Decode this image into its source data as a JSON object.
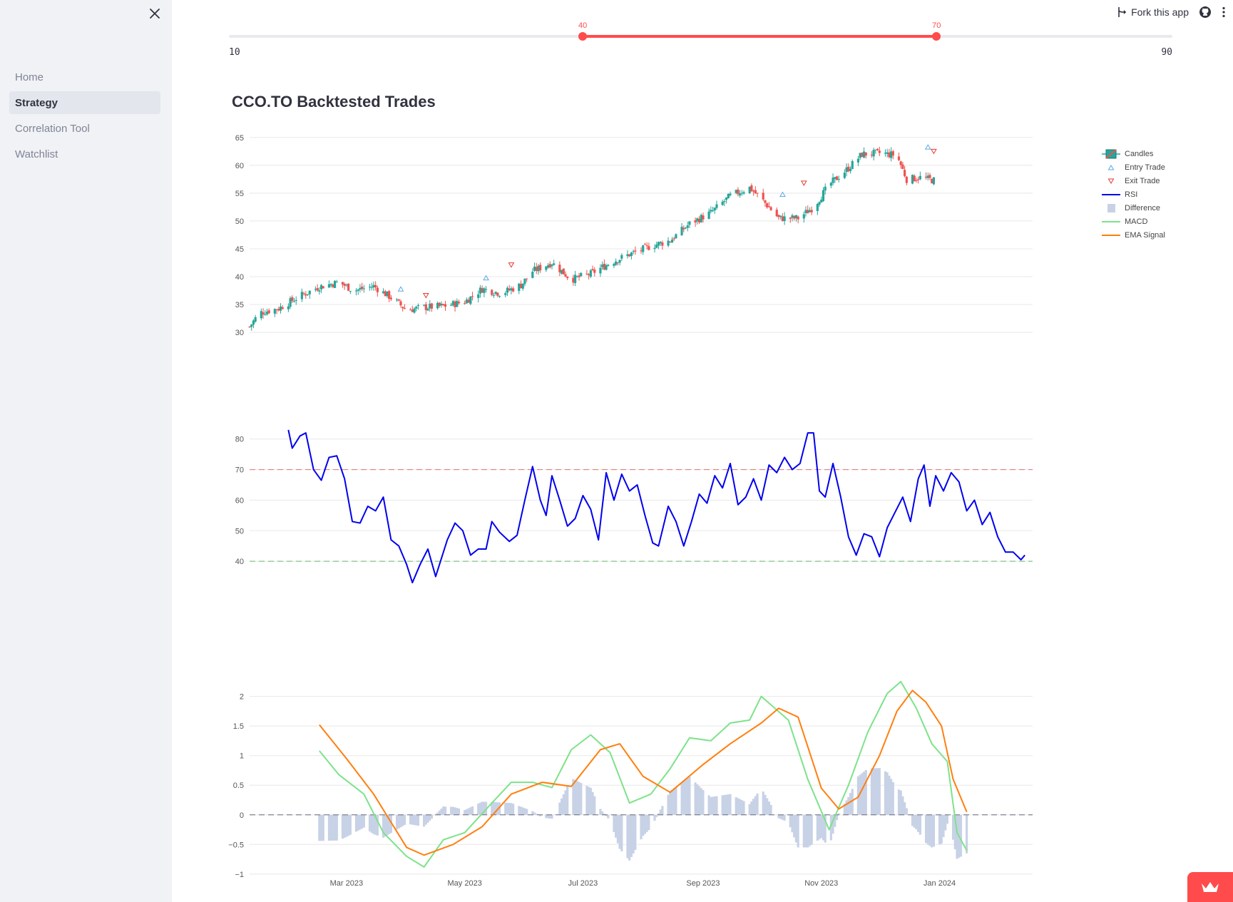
{
  "sidebar": {
    "items": [
      {
        "label": "Home",
        "active": false
      },
      {
        "label": "Strategy",
        "active": true
      },
      {
        "label": "Correlation Tool",
        "active": false
      },
      {
        "label": "Watchlist",
        "active": false
      }
    ]
  },
  "header": {
    "fork_label": "Fork this app",
    "icons": [
      "fork-icon",
      "github-icon",
      "more-vertical-icon"
    ]
  },
  "slider": {
    "min": "10",
    "max": "90",
    "low": 40,
    "high": 70,
    "low_label": "40",
    "high_label": "70",
    "accent": "#ff4b4b"
  },
  "page": {
    "title": "CCO.TO Backtested Trades"
  },
  "legend": [
    {
      "name": "Candles"
    },
    {
      "name": "Entry Trade"
    },
    {
      "name": "Exit Trade"
    },
    {
      "name": "RSI"
    },
    {
      "name": "Difference"
    },
    {
      "name": "MACD"
    },
    {
      "name": "EMA Signal"
    }
  ],
  "chart_data": [
    {
      "type": "candlestick",
      "name": "Candles",
      "ylim": [
        29.5,
        66
      ],
      "yticks": [
        "30",
        "35",
        "40",
        "45",
        "50",
        "55",
        "60",
        "65"
      ],
      "up_color": "#26a69a",
      "down_color": "#ef5350",
      "close_path": [
        [
          "2023-01-10",
          31
        ],
        [
          "2023-01-15",
          33.5
        ],
        [
          "2023-01-25",
          34.3
        ],
        [
          "2023-02-05",
          36.5
        ],
        [
          "2023-02-15",
          38.2
        ],
        [
          "2023-02-25",
          39
        ],
        [
          "2023-03-05",
          37.5
        ],
        [
          "2023-03-15",
          38.3
        ],
        [
          "2023-03-25",
          36
        ],
        [
          "2023-04-01",
          34
        ],
        [
          "2023-04-10",
          34.5
        ],
        [
          "2023-04-20",
          34.7
        ],
        [
          "2023-05-01",
          35.5
        ],
        [
          "2023-05-10",
          37.8
        ],
        [
          "2023-05-20",
          37
        ],
        [
          "2023-05-30",
          38.5
        ],
        [
          "2023-06-05",
          41
        ],
        [
          "2023-06-15",
          42.5
        ],
        [
          "2023-06-25",
          39.5
        ],
        [
          "2023-07-05",
          40.5
        ],
        [
          "2023-07-15",
          42.5
        ],
        [
          "2023-07-25",
          44
        ],
        [
          "2023-08-05",
          45.5
        ],
        [
          "2023-08-15",
          46.5
        ],
        [
          "2023-08-25",
          49.5
        ],
        [
          "2023-09-05",
          51.5
        ],
        [
          "2023-09-15",
          54.5
        ],
        [
          "2023-09-25",
          56
        ],
        [
          "2023-10-01",
          54
        ],
        [
          "2023-10-10",
          50.5
        ],
        [
          "2023-10-20",
          50.5
        ],
        [
          "2023-10-28",
          52.5
        ],
        [
          "2023-11-05",
          56.5
        ],
        [
          "2023-11-15",
          59.5
        ],
        [
          "2023-11-22",
          62
        ],
        [
          "2023-12-01",
          62.2
        ],
        [
          "2023-12-10",
          61.8
        ],
        [
          "2023-12-15",
          57.5
        ],
        [
          "2023-12-22",
          57.8
        ],
        [
          "2023-12-29",
          57.3
        ]
      ],
      "entries": [
        [
          "2023-03-29",
          37.8
        ],
        [
          "2023-05-12",
          39.8
        ],
        [
          "2023-10-12",
          54.8
        ],
        [
          "2023-12-26",
          63.3
        ]
      ],
      "exits": [
        [
          "2023-04-11",
          36.6
        ],
        [
          "2023-05-25",
          42.1
        ],
        [
          "2023-10-23",
          56.8
        ],
        [
          "2023-12-29",
          62.5
        ]
      ]
    },
    {
      "type": "line",
      "name": "RSI",
      "color": "#0000ee",
      "ylim": [
        30,
        86
      ],
      "yticks": [
        "40",
        "50",
        "60",
        "70",
        "80"
      ],
      "overbought": 70,
      "oversold": 40,
      "values": [
        [
          "2023-01-30",
          83
        ],
        [
          "2023-02-01",
          77
        ],
        [
          "2023-02-05",
          81
        ],
        [
          "2023-02-08",
          82
        ],
        [
          "2023-02-12",
          70
        ],
        [
          "2023-02-16",
          66.5
        ],
        [
          "2023-02-20",
          74
        ],
        [
          "2023-02-24",
          74.5
        ],
        [
          "2023-02-28",
          67
        ],
        [
          "2023-03-04",
          53
        ],
        [
          "2023-03-08",
          52.5
        ],
        [
          "2023-03-12",
          58
        ],
        [
          "2023-03-16",
          56.5
        ],
        [
          "2023-03-20",
          61
        ],
        [
          "2023-03-24",
          47
        ],
        [
          "2023-03-28",
          45
        ],
        [
          "2023-04-01",
          39
        ],
        [
          "2023-04-04",
          33
        ],
        [
          "2023-04-08",
          39
        ],
        [
          "2023-04-12",
          44
        ],
        [
          "2023-04-16",
          35
        ],
        [
          "2023-04-22",
          47
        ],
        [
          "2023-04-26",
          52.5
        ],
        [
          "2023-04-30",
          50
        ],
        [
          "2023-05-04",
          42
        ],
        [
          "2023-05-08",
          44
        ],
        [
          "2023-05-12",
          44
        ],
        [
          "2023-05-15",
          53
        ],
        [
          "2023-05-19",
          49.5
        ],
        [
          "2023-05-24",
          46.5
        ],
        [
          "2023-05-28",
          48.5
        ],
        [
          "2023-06-01",
          60
        ],
        [
          "2023-06-05",
          71
        ],
        [
          "2023-06-09",
          60
        ],
        [
          "2023-06-12",
          55
        ],
        [
          "2023-06-15",
          68
        ],
        [
          "2023-06-19",
          60
        ],
        [
          "2023-06-23",
          51.5
        ],
        [
          "2023-06-27",
          54
        ],
        [
          "2023-07-01",
          61.5
        ],
        [
          "2023-07-05",
          57
        ],
        [
          "2023-07-09",
          47
        ],
        [
          "2023-07-13",
          69
        ],
        [
          "2023-07-17",
          60
        ],
        [
          "2023-07-21",
          68.5
        ],
        [
          "2023-07-25",
          63
        ],
        [
          "2023-07-29",
          65
        ],
        [
          "2023-08-02",
          55
        ],
        [
          "2023-08-06",
          46
        ],
        [
          "2023-08-09",
          45
        ],
        [
          "2023-08-14",
          58
        ],
        [
          "2023-08-18",
          53
        ],
        [
          "2023-08-22",
          45
        ],
        [
          "2023-08-26",
          53
        ],
        [
          "2023-08-30",
          62
        ],
        [
          "2023-09-03",
          59
        ],
        [
          "2023-09-07",
          68
        ],
        [
          "2023-09-11",
          64
        ],
        [
          "2023-09-15",
          72
        ],
        [
          "2023-09-19",
          58.5
        ],
        [
          "2023-09-23",
          61
        ],
        [
          "2023-09-27",
          67
        ],
        [
          "2023-10-01",
          60
        ],
        [
          "2023-10-05",
          71.5
        ],
        [
          "2023-10-09",
          69
        ],
        [
          "2023-10-13",
          74
        ],
        [
          "2023-10-17",
          70
        ],
        [
          "2023-10-21",
          72
        ],
        [
          "2023-10-25",
          82
        ],
        [
          "2023-10-28",
          82
        ],
        [
          "2023-10-31",
          63
        ],
        [
          "2023-11-03",
          61
        ],
        [
          "2023-11-07",
          72
        ],
        [
          "2023-11-11",
          61
        ],
        [
          "2023-11-15",
          48
        ],
        [
          "2023-11-19",
          42
        ],
        [
          "2023-11-23",
          49
        ],
        [
          "2023-11-27",
          48
        ],
        [
          "2023-12-01",
          41.5
        ],
        [
          "2023-12-05",
          51
        ],
        [
          "2023-12-09",
          56
        ],
        [
          "2023-12-13",
          61
        ],
        [
          "2023-12-17",
          53
        ],
        [
          "2023-12-21",
          67
        ],
        [
          "2023-12-24",
          71.5
        ],
        [
          "2023-12-27",
          58
        ],
        [
          "2023-12-30",
          68
        ],
        [
          "2024-01-03",
          63
        ],
        [
          "2024-01-07",
          69
        ],
        [
          "2024-01-11",
          66
        ],
        [
          "2024-01-15",
          56.5
        ],
        [
          "2024-01-19",
          60
        ],
        [
          "2024-01-23",
          52
        ],
        [
          "2024-01-27",
          56
        ],
        [
          "2024-01-31",
          48
        ],
        [
          "2024-02-04",
          43
        ],
        [
          "2024-02-08",
          43
        ],
        [
          "2024-02-12",
          40.5
        ],
        [
          "2024-02-14",
          42
        ]
      ]
    },
    {
      "type": "line+bar",
      "ylim": [
        -1.05,
        2.2
      ],
      "yticks": [
        "2",
        "1.5",
        "1",
        "0.5",
        "0",
        "−0.5",
        "−1"
      ],
      "xticks": [
        "Mar 2023",
        "May 2023",
        "Jul 2023",
        "Sep 2023",
        "Nov 2023",
        "Jan 2024"
      ],
      "series": [
        {
          "name": "MACD",
          "color": "#7ee28a",
          "values": [
            [
              "2023-02-15",
              1.08
            ],
            [
              "2023-02-25",
              0.68
            ],
            [
              "2023-03-10",
              0.35
            ],
            [
              "2023-03-20",
              -0.3
            ],
            [
              "2023-04-01",
              -0.7
            ],
            [
              "2023-04-10",
              -0.88
            ],
            [
              "2023-04-20",
              -0.42
            ],
            [
              "2023-05-01",
              -0.3
            ],
            [
              "2023-05-15",
              0.2
            ],
            [
              "2023-05-25",
              0.55
            ],
            [
              "2023-06-05",
              0.55
            ],
            [
              "2023-06-15",
              0.46
            ],
            [
              "2023-06-25",
              1.1
            ],
            [
              "2023-07-05",
              1.35
            ],
            [
              "2023-07-15",
              1.05
            ],
            [
              "2023-07-25",
              0.2
            ],
            [
              "2023-08-05",
              0.35
            ],
            [
              "2023-08-15",
              0.78
            ],
            [
              "2023-08-25",
              1.3
            ],
            [
              "2023-09-05",
              1.25
            ],
            [
              "2023-09-15",
              1.55
            ],
            [
              "2023-09-25",
              1.6
            ],
            [
              "2023-10-01",
              2.0
            ],
            [
              "2023-10-08",
              1.8
            ],
            [
              "2023-10-15",
              1.6
            ],
            [
              "2023-10-25",
              0.6
            ],
            [
              "2023-11-05",
              -0.25
            ],
            [
              "2023-11-15",
              0.5
            ],
            [
              "2023-11-25",
              1.4
            ],
            [
              "2023-12-05",
              2.05
            ],
            [
              "2023-12-12",
              2.25
            ],
            [
              "2023-12-20",
              1.8
            ],
            [
              "2023-12-28",
              1.2
            ],
            [
              "2024-01-05",
              0.9
            ],
            [
              "2024-01-10",
              -0.3
            ],
            [
              "2024-01-15",
              -0.6
            ]
          ]
        },
        {
          "name": "EMA Signal",
          "color": "#ff7f0e",
          "values": [
            [
              "2023-02-15",
              1.52
            ],
            [
              "2023-03-01",
              0.95
            ],
            [
              "2023-03-15",
              0.35
            ],
            [
              "2023-04-01",
              -0.55
            ],
            [
              "2023-04-10",
              -0.68
            ],
            [
              "2023-04-25",
              -0.5
            ],
            [
              "2023-05-10",
              -0.2
            ],
            [
              "2023-05-25",
              0.35
            ],
            [
              "2023-06-10",
              0.55
            ],
            [
              "2023-06-25",
              0.48
            ],
            [
              "2023-07-10",
              1.1
            ],
            [
              "2023-07-20",
              1.2
            ],
            [
              "2023-08-01",
              0.65
            ],
            [
              "2023-08-15",
              0.38
            ],
            [
              "2023-09-01",
              0.85
            ],
            [
              "2023-09-15",
              1.2
            ],
            [
              "2023-10-01",
              1.55
            ],
            [
              "2023-10-10",
              1.8
            ],
            [
              "2023-10-20",
              1.65
            ],
            [
              "2023-11-01",
              0.45
            ],
            [
              "2023-11-10",
              0.1
            ],
            [
              "2023-11-20",
              0.3
            ],
            [
              "2023-12-01",
              1.0
            ],
            [
              "2023-12-10",
              1.75
            ],
            [
              "2023-12-18",
              2.1
            ],
            [
              "2023-12-25",
              1.9
            ],
            [
              "2024-01-02",
              1.5
            ],
            [
              "2024-01-08",
              0.6
            ],
            [
              "2024-01-15",
              0.05
            ]
          ]
        },
        {
          "name": "Difference",
          "color": "#c8d2e6",
          "type": "bar"
        }
      ]
    }
  ]
}
